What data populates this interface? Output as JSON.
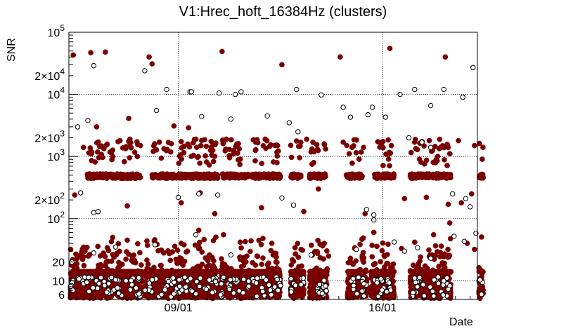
{
  "chart_data": {
    "type": "scatter",
    "title": "V1:Hrec_hoft_16384Hz (clusters)",
    "xlabel": "Date",
    "ylabel": "SNR",
    "yscale": "log",
    "ylim": [
      5,
      100000
    ],
    "x_range_days": [
      -7.5,
      20.5
    ],
    "x_ticks": [
      {
        "day": 0,
        "label": "09/01"
      },
      {
        "day": 14,
        "label": "16/01"
      }
    ],
    "y_ticks": [
      {
        "value": 6,
        "label": "6"
      },
      {
        "value": 10,
        "label": "10"
      },
      {
        "value": 20,
        "label": "20"
      },
      {
        "value": 100,
        "label": "10",
        "exp": "2"
      },
      {
        "value": 200,
        "label": "2×10",
        "exp": "2"
      },
      {
        "value": 1000,
        "label": "10",
        "exp": "3"
      },
      {
        "value": 2000,
        "label": "2×10",
        "exp": "3"
      },
      {
        "value": 10000,
        "label": "10",
        "exp": "4"
      },
      {
        "value": 20000,
        "label": "2×10",
        "exp": "4"
      },
      {
        "value": 100000,
        "label": "10",
        "exp": "5"
      }
    ],
    "grid": true,
    "colors": {
      "filled": "#7a0000",
      "hollow": "#000000"
    },
    "segments": [
      [
        -7.4,
        -2.5
      ],
      [
        -2.3,
        2.7
      ],
      [
        2.9,
        7.0
      ],
      [
        7.7,
        8.6
      ],
      [
        9.0,
        10.2
      ],
      [
        11.6,
        12.9
      ],
      [
        13.2,
        14.8
      ],
      [
        15.9,
        18.7
      ],
      [
        20.6,
        20.9
      ]
    ],
    "series": [
      {
        "style": "filled",
        "points": [
          [
            -7.2,
            43000
          ],
          [
            -6.0,
            47000
          ],
          [
            -5.0,
            48000
          ],
          [
            -2.0,
            40000
          ],
          [
            -1.8,
            31000
          ],
          [
            3.0,
            49000
          ],
          [
            7.1,
            30000
          ],
          [
            11.1,
            40000
          ],
          [
            14.5,
            55000
          ],
          [
            18.3,
            40000
          ],
          [
            -6.5,
            1400
          ],
          [
            -4.0,
            1800
          ],
          [
            -2.6,
            1500
          ],
          [
            -1.3,
            1700
          ],
          [
            1.2,
            1900
          ],
          [
            2.4,
            1600
          ],
          [
            3.5,
            1300
          ],
          [
            5.3,
            1700
          ],
          [
            6.8,
            1500
          ],
          [
            8.8,
            1900
          ],
          [
            10.0,
            1600
          ],
          [
            11.3,
            1700
          ],
          [
            12.7,
            1400
          ],
          [
            14.6,
            1500
          ],
          [
            16.2,
            1700
          ],
          [
            17.2,
            1800
          ],
          [
            18.5,
            1400
          ],
          [
            19.2,
            1800
          ],
          [
            20.3,
            1500
          ],
          [
            -5.6,
            3000
          ],
          [
            -0.3,
            3100
          ],
          [
            0.7,
            2900
          ],
          [
            -3.4,
            4100
          ],
          [
            3.3,
            1900
          ],
          [
            -7.1,
            240
          ],
          [
            -3.5,
            160
          ],
          [
            0.2,
            180
          ],
          [
            1.5,
            260
          ],
          [
            2.5,
            120
          ],
          [
            5.7,
            150
          ],
          [
            8.6,
            130
          ],
          [
            9.6,
            300
          ],
          [
            12.8,
            120
          ],
          [
            15.5,
            210
          ],
          [
            17.0,
            220
          ],
          [
            18.5,
            170
          ],
          [
            19.4,
            180
          ],
          [
            20.1,
            250
          ],
          [
            -4.5,
            50
          ],
          [
            -3.5,
            45
          ],
          [
            0.2,
            40
          ],
          [
            1.4,
            65
          ],
          [
            3.1,
            55
          ],
          [
            5.8,
            48
          ],
          [
            8.0,
            34
          ],
          [
            10.3,
            25
          ],
          [
            12.1,
            34
          ],
          [
            13.4,
            60
          ],
          [
            15.3,
            33
          ],
          [
            17.5,
            55
          ],
          [
            18.6,
            85
          ],
          [
            19.8,
            40
          ],
          [
            20.3,
            32
          ],
          [
            -1.0,
            28
          ],
          [
            6.5,
            26
          ]
        ]
      },
      {
        "style": "hollow",
        "points": [
          [
            -5.8,
            29000
          ],
          [
            -2.3,
            24000
          ],
          [
            -0.8,
            12000
          ],
          [
            0.8,
            11000
          ],
          [
            0.9,
            11000
          ],
          [
            2.8,
            10500
          ],
          [
            3.9,
            10000
          ],
          [
            4.3,
            11000
          ],
          [
            8.1,
            12000
          ],
          [
            9.8,
            9800
          ],
          [
            11.3,
            6200
          ],
          [
            13.3,
            6200
          ],
          [
            15.2,
            10000
          ],
          [
            16.2,
            12000
          ],
          [
            17.3,
            6600
          ],
          [
            18.2,
            12000
          ],
          [
            19.5,
            9000
          ],
          [
            20.2,
            27000
          ],
          [
            -6.9,
            3000
          ],
          [
            -6.2,
            3800
          ],
          [
            -1.5,
            5500
          ],
          [
            1.6,
            4400
          ],
          [
            3.6,
            4000
          ],
          [
            6.1,
            4500
          ],
          [
            7.6,
            3500
          ],
          [
            8.2,
            2500
          ],
          [
            11.8,
            4300
          ],
          [
            13.0,
            4700
          ],
          [
            14.2,
            4300
          ],
          [
            15.8,
            2000
          ],
          [
            16.7,
            1700
          ],
          [
            17.3,
            1400
          ],
          [
            -6.7,
            260
          ],
          [
            -5.8,
            125
          ],
          [
            -5.5,
            130
          ],
          [
            0.0,
            220
          ],
          [
            1.4,
            250
          ],
          [
            2.7,
            240
          ],
          [
            7.1,
            215
          ],
          [
            7.9,
            165
          ],
          [
            12.9,
            140
          ],
          [
            13.4,
            115
          ],
          [
            18.8,
            250
          ],
          [
            19.7,
            210
          ],
          [
            20.0,
            155
          ],
          [
            -7.3,
            20
          ],
          [
            -5.8,
            28
          ],
          [
            -4.3,
            35
          ],
          [
            -1.6,
            38
          ],
          [
            1.2,
            55
          ],
          [
            3.6,
            26
          ],
          [
            9.1,
            26
          ],
          [
            12.2,
            32
          ],
          [
            13.4,
            95
          ],
          [
            14.8,
            42
          ],
          [
            15.5,
            30
          ],
          [
            16.4,
            34
          ],
          [
            17.3,
            23
          ],
          [
            18.9,
            52
          ],
          [
            19.6,
            43
          ],
          [
            20.4,
            58
          ]
        ]
      }
    ],
    "dense_bands": [
      {
        "y_center": 485,
        "x_segments": [
          [
            -6.3,
            -2.6
          ],
          [
            -1.8,
            2.7
          ],
          [
            3.0,
            4.9
          ],
          [
            5.0,
            7.0
          ],
          [
            7.7,
            8.4
          ],
          [
            9.0,
            10.1
          ],
          [
            11.5,
            12.6
          ],
          [
            13.4,
            14.8
          ],
          [
            15.9,
            18.7
          ],
          [
            20.6,
            20.9
          ]
        ]
      }
    ]
  }
}
